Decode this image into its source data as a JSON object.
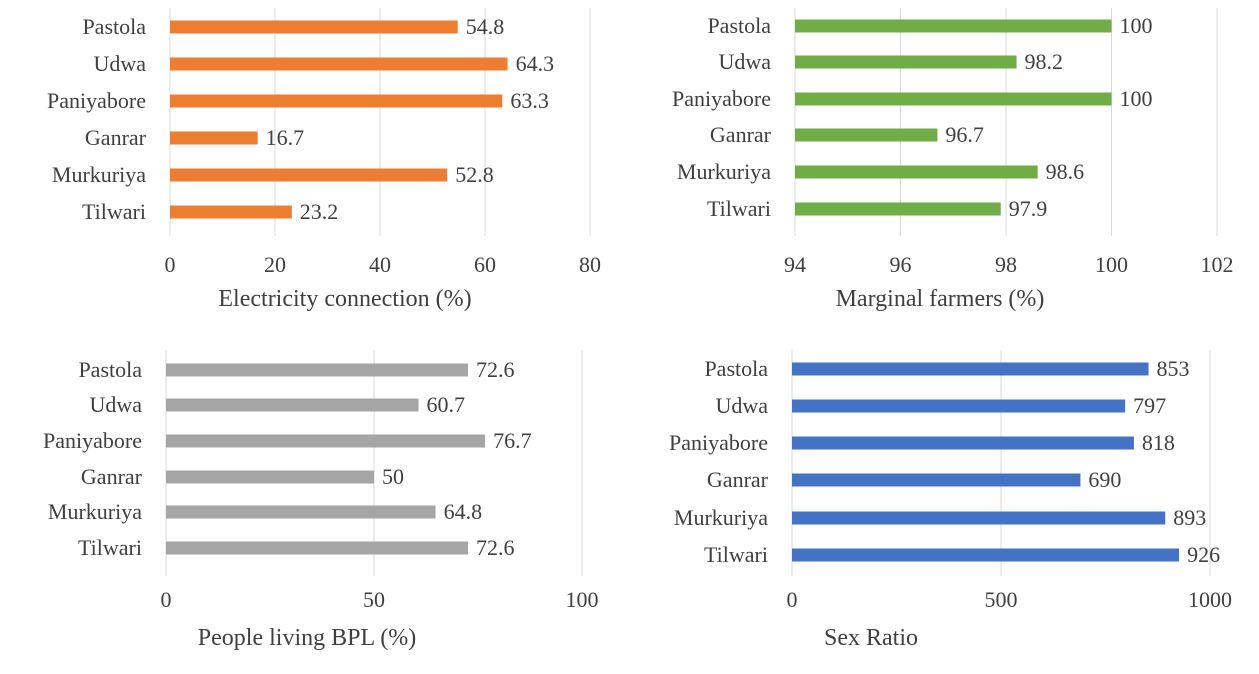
{
  "chart_data": [
    {
      "type": "bar",
      "orientation": "horizontal",
      "categories": [
        "Pastola",
        "Udwa",
        "Paniyabore",
        "Ganrar",
        "Murkuriya",
        "Tilwari"
      ],
      "values": [
        54.8,
        64.3,
        63.3,
        16.7,
        52.8,
        23.2
      ],
      "xlabel": "Electricity connection (%)",
      "xlim": [
        0,
        80
      ],
      "ticks": [
        0,
        20,
        40,
        60,
        80
      ],
      "color": "#ED7D31",
      "grid": true
    },
    {
      "type": "bar",
      "orientation": "horizontal",
      "categories": [
        "Pastola",
        "Udwa",
        "Paniyabore",
        "Ganrar",
        "Murkuriya",
        "Tilwari"
      ],
      "values": [
        100,
        98.2,
        100,
        96.7,
        98.6,
        97.9
      ],
      "xlabel": "Marginal farmers (%)",
      "xlim": [
        94,
        102
      ],
      "ticks": [
        94,
        96,
        98,
        100,
        102
      ],
      "color": "#70AD47",
      "grid": true
    },
    {
      "type": "bar",
      "orientation": "horizontal",
      "categories": [
        "Pastola",
        "Udwa",
        "Paniyabore",
        "Ganrar",
        "Murkuriya",
        "Tilwari"
      ],
      "values": [
        72.6,
        60.7,
        76.7,
        50,
        64.8,
        72.6
      ],
      "xlabel": "People living BPL (%)",
      "xlim": [
        0,
        100
      ],
      "ticks": [
        0,
        50,
        100
      ],
      "color": "#A5A5A5",
      "grid": true
    },
    {
      "type": "bar",
      "orientation": "horizontal",
      "categories": [
        "Pastola",
        "Udwa",
        "Paniyabore",
        "Ganrar",
        "Murkuriya",
        "Tilwari"
      ],
      "values": [
        853,
        797,
        818,
        690,
        893,
        926
      ],
      "xlabel": "Sex Ratio",
      "xlim": [
        0,
        1000
      ],
      "ticks": [
        0,
        500,
        1000
      ],
      "color": "#4472C4",
      "grid": true
    }
  ]
}
